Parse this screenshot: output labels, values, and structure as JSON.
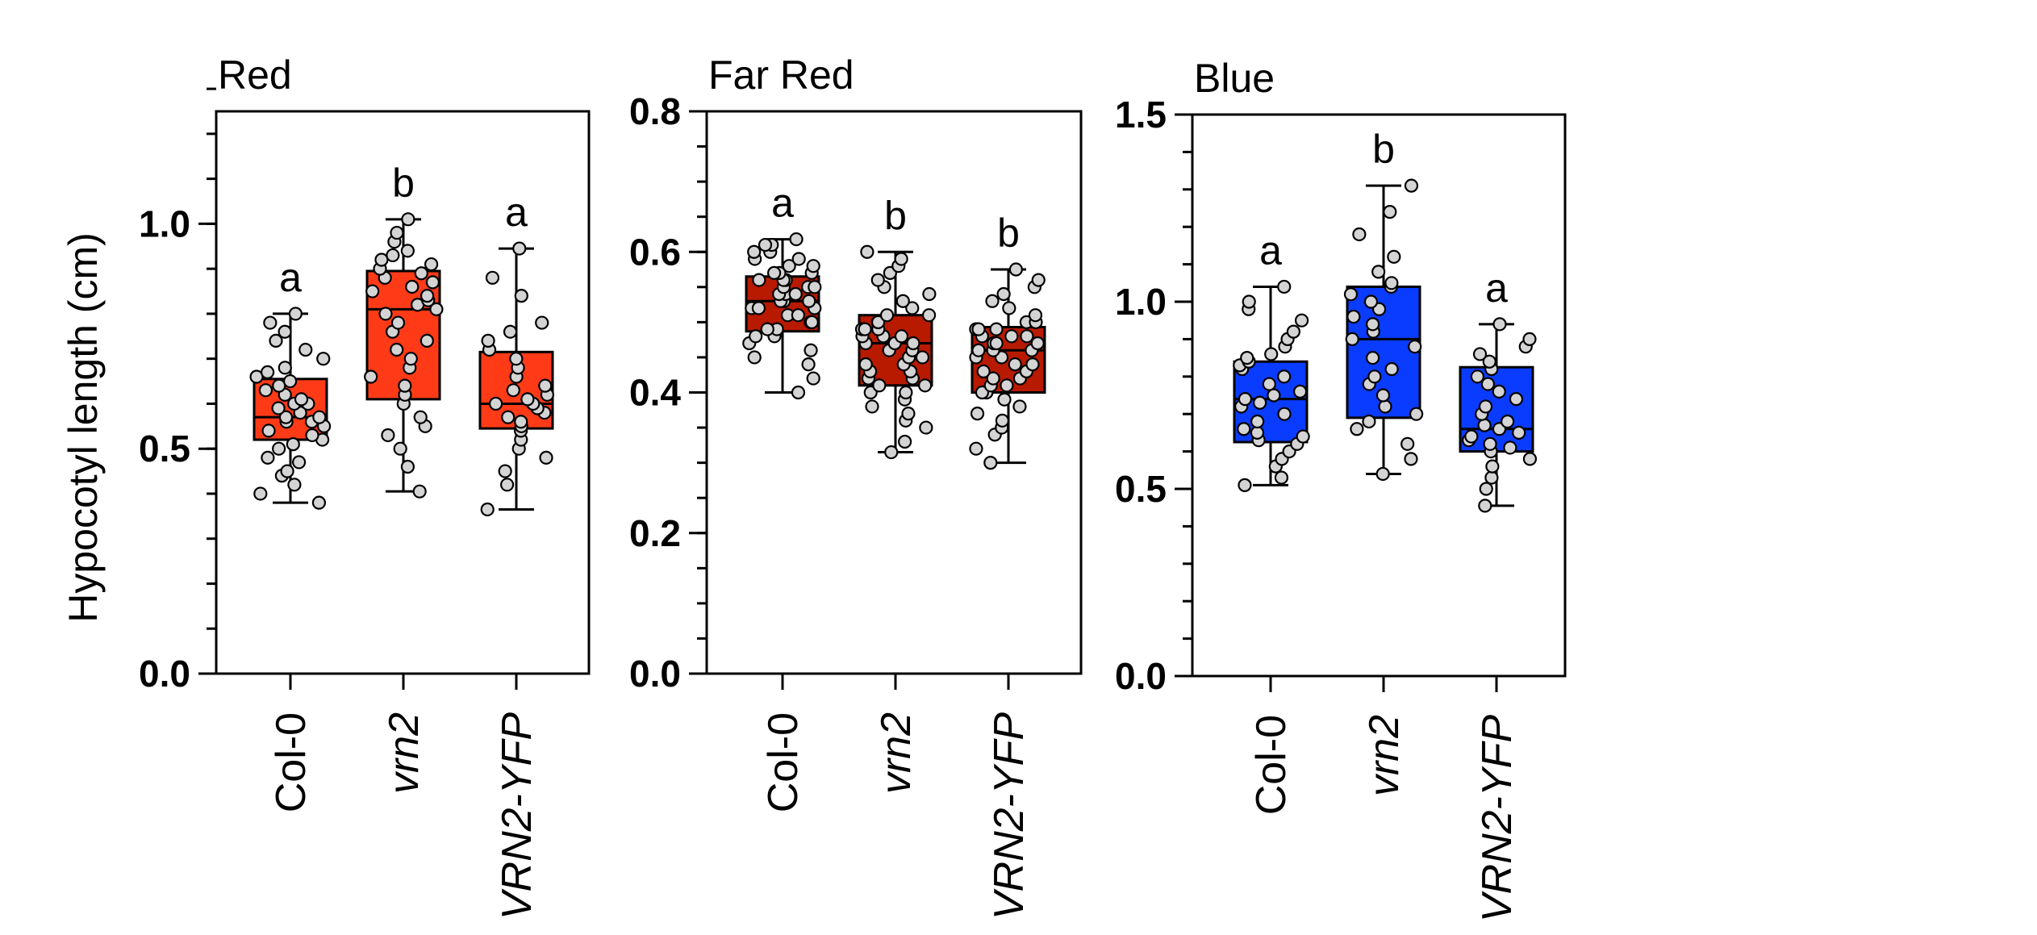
{
  "figure": {
    "y_axis_label": "Hypocotyl length (cm)"
  },
  "chart_data": [
    {
      "type": "box",
      "title": "Red",
      "ylabel": "Hypocotyl length (cm)",
      "ylim": [
        0,
        1.25
      ],
      "yticks": [
        0.0,
        0.5,
        1.0
      ],
      "ytick_labels": [
        "0.0",
        "0.5",
        "1.0"
      ],
      "minor_step": 0.1,
      "box_color": "#ff3b17",
      "categories": [
        "Col-0",
        "vrn2",
        "VRN2-YFP"
      ],
      "categories_italic": [
        false,
        true,
        true
      ],
      "letters": [
        "a",
        "b",
        "a"
      ],
      "stats": [
        {
          "min": 0.38,
          "q1": 0.52,
          "median": 0.57,
          "q3": 0.655,
          "max": 0.8
        },
        {
          "min": 0.405,
          "q1": 0.61,
          "median": 0.81,
          "q3": 0.895,
          "max": 1.01
        },
        {
          "min": 0.365,
          "q1": 0.545,
          "median": 0.6,
          "q3": 0.715,
          "max": 0.945
        }
      ],
      "points": [
        [
          0.38,
          0.4,
          0.42,
          0.44,
          0.45,
          0.47,
          0.48,
          0.5,
          0.51,
          0.52,
          0.53,
          0.54,
          0.55,
          0.56,
          0.56,
          0.57,
          0.57,
          0.58,
          0.59,
          0.6,
          0.6,
          0.61,
          0.62,
          0.63,
          0.64,
          0.65,
          0.66,
          0.67,
          0.68,
          0.7,
          0.72,
          0.74,
          0.76,
          0.78,
          0.8
        ],
        [
          0.405,
          0.46,
          0.5,
          0.53,
          0.55,
          0.57,
          0.6,
          0.62,
          0.64,
          0.66,
          0.68,
          0.7,
          0.72,
          0.74,
          0.76,
          0.78,
          0.8,
          0.81,
          0.82,
          0.83,
          0.84,
          0.85,
          0.86,
          0.87,
          0.88,
          0.89,
          0.9,
          0.91,
          0.92,
          0.93,
          0.94,
          0.96,
          0.98,
          1.01
        ],
        [
          0.365,
          0.42,
          0.45,
          0.48,
          0.5,
          0.52,
          0.54,
          0.55,
          0.56,
          0.57,
          0.58,
          0.59,
          0.6,
          0.6,
          0.61,
          0.62,
          0.63,
          0.64,
          0.66,
          0.68,
          0.7,
          0.72,
          0.74,
          0.76,
          0.78,
          0.84,
          0.88,
          0.945
        ]
      ]
    },
    {
      "type": "box",
      "title": "Far Red",
      "ylabel": "",
      "ylim": [
        0,
        0.8
      ],
      "yticks": [
        0.0,
        0.2,
        0.4,
        0.6,
        0.8
      ],
      "ytick_labels": [
        "0.0",
        "0.2",
        "0.4",
        "0.6",
        "0.8"
      ],
      "minor_step": 0.05,
      "box_color": "#b81a00",
      "categories": [
        "Col-0",
        "vrn2",
        "VRN2-YFP"
      ],
      "categories_italic": [
        false,
        true,
        true
      ],
      "letters": [
        "a",
        "b",
        "b"
      ],
      "stats": [
        {
          "min": 0.4,
          "q1": 0.487,
          "median": 0.53,
          "q3": 0.565,
          "max": 0.618
        },
        {
          "min": 0.315,
          "q1": 0.41,
          "median": 0.47,
          "q3": 0.51,
          "max": 0.6
        },
        {
          "min": 0.3,
          "q1": 0.4,
          "median": 0.46,
          "q3": 0.493,
          "max": 0.575
        }
      ],
      "points": [
        [
          0.4,
          0.42,
          0.44,
          0.45,
          0.46,
          0.47,
          0.48,
          0.48,
          0.49,
          0.49,
          0.5,
          0.5,
          0.51,
          0.51,
          0.52,
          0.52,
          0.52,
          0.53,
          0.53,
          0.53,
          0.54,
          0.54,
          0.54,
          0.55,
          0.55,
          0.55,
          0.56,
          0.56,
          0.56,
          0.57,
          0.57,
          0.57,
          0.58,
          0.58,
          0.59,
          0.59,
          0.6,
          0.6,
          0.61,
          0.61,
          0.618
        ],
        [
          0.315,
          0.33,
          0.35,
          0.36,
          0.37,
          0.38,
          0.39,
          0.4,
          0.4,
          0.41,
          0.41,
          0.42,
          0.42,
          0.43,
          0.43,
          0.44,
          0.44,
          0.45,
          0.45,
          0.46,
          0.46,
          0.47,
          0.47,
          0.47,
          0.48,
          0.48,
          0.48,
          0.49,
          0.49,
          0.49,
          0.5,
          0.5,
          0.51,
          0.51,
          0.52,
          0.53,
          0.54,
          0.55,
          0.56,
          0.57,
          0.58,
          0.59,
          0.6
        ],
        [
          0.3,
          0.32,
          0.34,
          0.35,
          0.36,
          0.37,
          0.38,
          0.39,
          0.4,
          0.4,
          0.41,
          0.41,
          0.42,
          0.42,
          0.43,
          0.43,
          0.44,
          0.44,
          0.45,
          0.45,
          0.46,
          0.46,
          0.46,
          0.47,
          0.47,
          0.47,
          0.48,
          0.48,
          0.48,
          0.49,
          0.49,
          0.49,
          0.5,
          0.5,
          0.51,
          0.52,
          0.53,
          0.54,
          0.55,
          0.56,
          0.575
        ]
      ]
    },
    {
      "type": "box",
      "title": "Blue",
      "ylabel": "",
      "ylim": [
        0,
        1.5
      ],
      "yticks": [
        0.0,
        0.5,
        1.0,
        1.5
      ],
      "ytick_labels": [
        "0.0",
        "0.5",
        "1.0",
        "1.5"
      ],
      "minor_step": 0.1,
      "box_color": "#0a3cff",
      "categories": [
        "Col-0",
        "vrn2",
        "VRN2-YFP"
      ],
      "categories_italic": [
        false,
        true,
        true
      ],
      "letters": [
        "a",
        "b",
        "a"
      ],
      "stats": [
        {
          "min": 0.51,
          "q1": 0.625,
          "median": 0.74,
          "q3": 0.84,
          "max": 1.04
        },
        {
          "min": 0.54,
          "q1": 0.69,
          "median": 0.9,
          "q3": 1.04,
          "max": 1.31
        },
        {
          "min": 0.455,
          "q1": 0.6,
          "median": 0.66,
          "q3": 0.825,
          "max": 0.94
        }
      ],
      "points": [
        [
          0.51,
          0.53,
          0.56,
          0.58,
          0.6,
          0.62,
          0.63,
          0.64,
          0.65,
          0.66,
          0.68,
          0.7,
          0.72,
          0.73,
          0.74,
          0.75,
          0.76,
          0.78,
          0.8,
          0.82,
          0.83,
          0.84,
          0.85,
          0.86,
          0.88,
          0.9,
          0.92,
          0.95,
          0.98,
          1.0,
          1.04
        ],
        [
          0.54,
          0.58,
          0.62,
          0.66,
          0.68,
          0.7,
          0.72,
          0.75,
          0.78,
          0.8,
          0.82,
          0.85,
          0.88,
          0.9,
          0.92,
          0.94,
          0.96,
          0.98,
          1.0,
          1.02,
          1.04,
          1.05,
          1.08,
          1.12,
          1.18,
          1.24,
          1.31
        ],
        [
          0.455,
          0.5,
          0.53,
          0.56,
          0.58,
          0.6,
          0.61,
          0.62,
          0.63,
          0.64,
          0.65,
          0.66,
          0.67,
          0.68,
          0.7,
          0.72,
          0.74,
          0.76,
          0.78,
          0.8,
          0.82,
          0.84,
          0.86,
          0.88,
          0.9,
          0.94
        ]
      ]
    }
  ]
}
